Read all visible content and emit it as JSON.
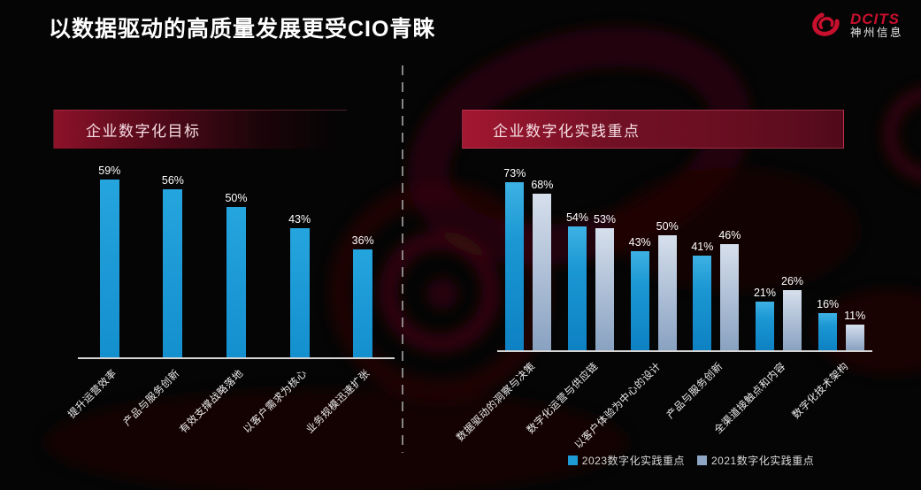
{
  "page": {
    "title": "以数据驱动的高质量发展更受CIO青睐"
  },
  "logo": {
    "brand": "DCITS",
    "name": "神州信息"
  },
  "colors": {
    "background": "#060505",
    "accent_red": "#c8102e",
    "banner_red": "#a31731",
    "bar_blue_2023": "#1a9ad6",
    "bar_gray_2021": "#9db4cf",
    "axis": "#d4d4d4",
    "text": "#ffffff"
  },
  "chart_data": [
    {
      "type": "bar",
      "title": "企业数字化目标",
      "categories": [
        "提升运营效率",
        "产品与服务创新",
        "有效支撑战略落地",
        "以客户需求为核心",
        "业务规模迅速扩张"
      ],
      "values": [
        59,
        56,
        50,
        43,
        36
      ],
      "unit": "%",
      "bar_color": "#1a9ad6",
      "xlabel": "",
      "ylabel": "",
      "ylim": [
        0,
        65
      ],
      "grid": false,
      "value_labels_shown": true
    },
    {
      "type": "bar",
      "title": "企业数字化实践重点",
      "categories": [
        "数据驱动的洞察与决策",
        "数字化运营与供应链",
        "以客户体验为中心的设计",
        "产品与服务创新",
        "全渠道接触点和内容",
        "数字化技术架构"
      ],
      "series": [
        {
          "name": "2023数字化实践重点",
          "color": "#1e9ad4",
          "values": [
            73,
            54,
            43,
            41,
            21,
            16
          ]
        },
        {
          "name": "2021数字化实践重点",
          "color": "#8ea6c3",
          "values": [
            68,
            53,
            50,
            46,
            26,
            11
          ]
        }
      ],
      "unit": "%",
      "xlabel": "",
      "ylabel": "",
      "ylim": [
        0,
        80
      ],
      "grid": false,
      "legend_position": "bottom",
      "value_labels_shown": true
    }
  ]
}
